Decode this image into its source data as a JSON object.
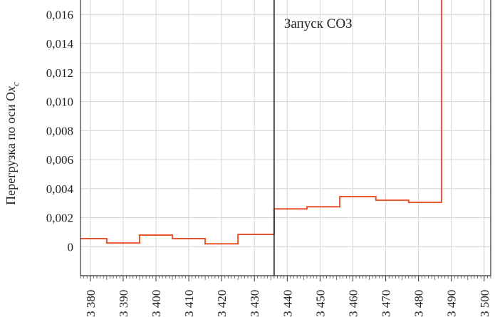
{
  "chart_data": {
    "type": "line",
    "step": true,
    "ylabel_main": "Перегрузка по оси O",
    "ylabel_var": "x",
    "ylabel_sub": "с",
    "xlabel": "",
    "xlim": [
      3377,
      3502
    ],
    "ylim": [
      -0.002,
      0.017
    ],
    "xticks": [
      3380,
      3390,
      3400,
      3410,
      3420,
      3430,
      3440,
      3450,
      3460,
      3470,
      3480,
      3490,
      3500
    ],
    "xtick_labels": [
      "3 380",
      "3 390",
      "3 400",
      "3 410",
      "3 420",
      "3 430",
      "3 440",
      "3 450",
      "3 460",
      "3 470",
      "3 480",
      "3 490",
      "3 500"
    ],
    "yticks": [
      0,
      0.002,
      0.004,
      0.006,
      0.008,
      0.01,
      0.012,
      0.014,
      0.016
    ],
    "ytick_labels": [
      "0",
      "0,002",
      "0,004",
      "0,006",
      "0,008",
      "0,010",
      "0,012",
      "0,014",
      "0,016"
    ],
    "grid": true,
    "series": [
      {
        "color": "#e8552c",
        "x": [
          3377,
          3385,
          3385,
          3395,
          3395,
          3405,
          3405,
          3415,
          3415,
          3425,
          3425,
          3436,
          3436,
          3446,
          3446,
          3456,
          3456,
          3467,
          3467,
          3477,
          3477,
          3487,
          3487
        ],
        "y": [
          0.00055,
          0.00055,
          0.00025,
          0.00025,
          0.0008,
          0.0008,
          0.00055,
          0.00055,
          0.0002,
          0.0002,
          0.00085,
          0.00085,
          0.0026,
          0.0026,
          0.00275,
          0.00275,
          0.00345,
          0.00345,
          0.0032,
          0.0032,
          0.00305,
          0.00305,
          0.017
        ]
      }
    ],
    "events": [
      {
        "x": 3436,
        "label": "Запуск СОЗ"
      }
    ]
  }
}
